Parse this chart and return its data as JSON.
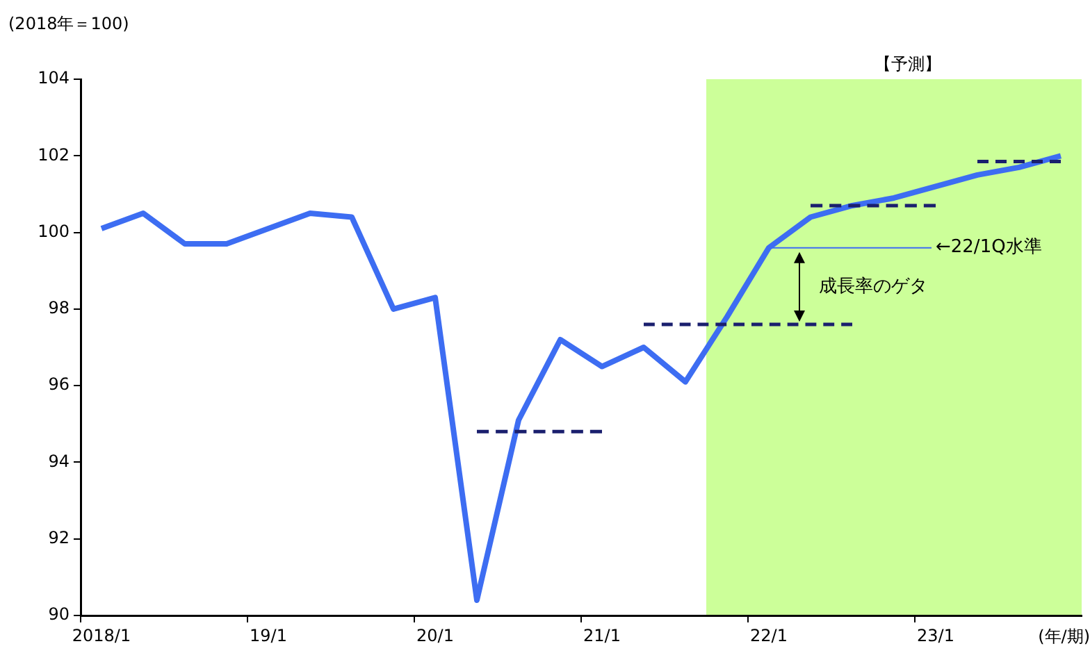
{
  "chart_data": {
    "type": "line",
    "ylabel": "(2018年＝100)",
    "xlabel": "(年/期)",
    "categories": [
      "2018/1",
      null,
      null,
      null,
      "19/1",
      null,
      null,
      null,
      "20/1",
      null,
      null,
      null,
      "21/1",
      null,
      null,
      null,
      "22/1",
      null,
      null,
      null,
      "23/1",
      null,
      null,
      null
    ],
    "ylim": [
      90,
      104
    ],
    "yticks": [
      90,
      92,
      94,
      96,
      98,
      100,
      102,
      104
    ],
    "marker": "none",
    "line_style": "solid",
    "series": [
      {
        "color": "#3d6df2",
        "values": [
          100.1,
          100.5,
          99.7,
          99.7,
          100.1,
          100.5,
          100.4,
          98.0,
          98.3,
          90.4,
          95.1,
          97.2,
          96.5,
          97.0,
          96.1,
          97.8,
          99.6,
          100.4,
          100.7,
          100.9,
          101.2,
          101.5,
          101.7,
          102.0
        ]
      },
      {
        "color": "#1a1f6e",
        "line_style": "dashed",
        "values": [
          null,
          null,
          null,
          null,
          null,
          null,
          null,
          null,
          null,
          94.8,
          94.8,
          94.8,
          94.8,
          null,
          null,
          null,
          null,
          null,
          null,
          null,
          null,
          null,
          null,
          null
        ]
      },
      {
        "color": "#1a1f6e",
        "line_style": "dashed",
        "values": [
          null,
          null,
          null,
          null,
          null,
          null,
          null,
          null,
          null,
          null,
          null,
          null,
          null,
          97.6,
          97.6,
          97.6,
          97.6,
          97.6,
          97.6,
          null,
          null,
          null,
          null,
          null
        ]
      },
      {
        "color": "#1a1f6e",
        "line_style": "dashed",
        "values": [
          null,
          null,
          null,
          null,
          null,
          null,
          null,
          null,
          null,
          null,
          null,
          null,
          null,
          null,
          null,
          null,
          null,
          100.7,
          100.7,
          100.7,
          100.7,
          null,
          null,
          null
        ]
      },
      {
        "color": "#1a1f6e",
        "line_style": "dashed",
        "values": [
          null,
          null,
          null,
          null,
          null,
          null,
          null,
          null,
          null,
          null,
          null,
          null,
          null,
          null,
          null,
          null,
          null,
          null,
          null,
          null,
          null,
          101.85,
          101.85,
          101.85
        ]
      }
    ],
    "annotations": [
      {
        "text": "←22/1Q水準",
        "x": "22/1",
        "y": 99.6
      },
      "成長率のゲタ",
      "【予測】"
    ]
  }
}
